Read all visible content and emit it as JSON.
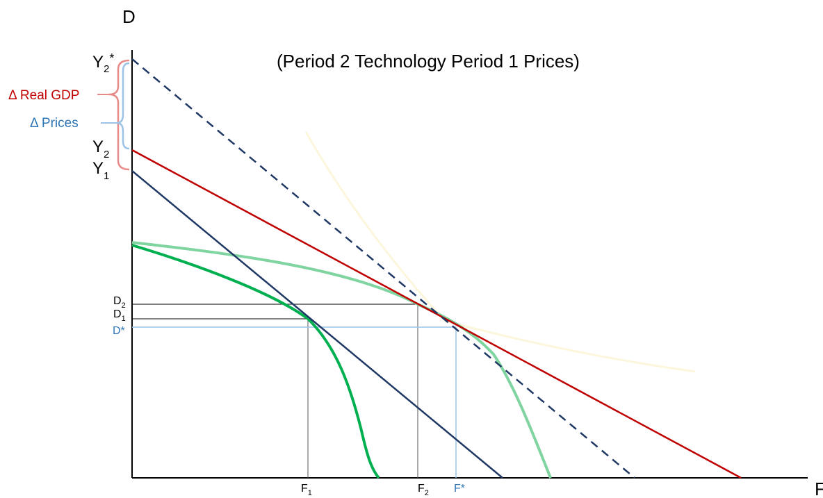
{
  "title": "(Period 2 Technology Period 1 Prices)",
  "axes": {
    "y_label": "D",
    "x_label": "F"
  },
  "y_axis_labels": {
    "y2_star": {
      "base": "Y",
      "sub": "2",
      "sup": "*"
    },
    "y2": {
      "base": "Y",
      "sub": "2"
    },
    "y1": {
      "base": "Y",
      "sub": "1"
    },
    "d2": {
      "base": "D",
      "sub": "2"
    },
    "d1": {
      "base": "D",
      "sub": "1"
    },
    "d_star": {
      "text": "D*"
    }
  },
  "x_axis_labels": {
    "f1": {
      "base": "F",
      "sub": "1"
    },
    "f2": {
      "base": "F",
      "sub": "2"
    },
    "f_star": {
      "text": "F*"
    }
  },
  "brackets": {
    "real_gdp": "Δ Real GDP",
    "prices": "Δ Prices"
  },
  "colors": {
    "red_line": "#c00000",
    "navy_line": "#1f3864",
    "dark_green": "#00b050",
    "light_green": "#7fd4a0",
    "blue_label": "#2e75b6",
    "bracket_red": "#e88a8a",
    "bracket_blue": "#9cc3e6"
  }
}
